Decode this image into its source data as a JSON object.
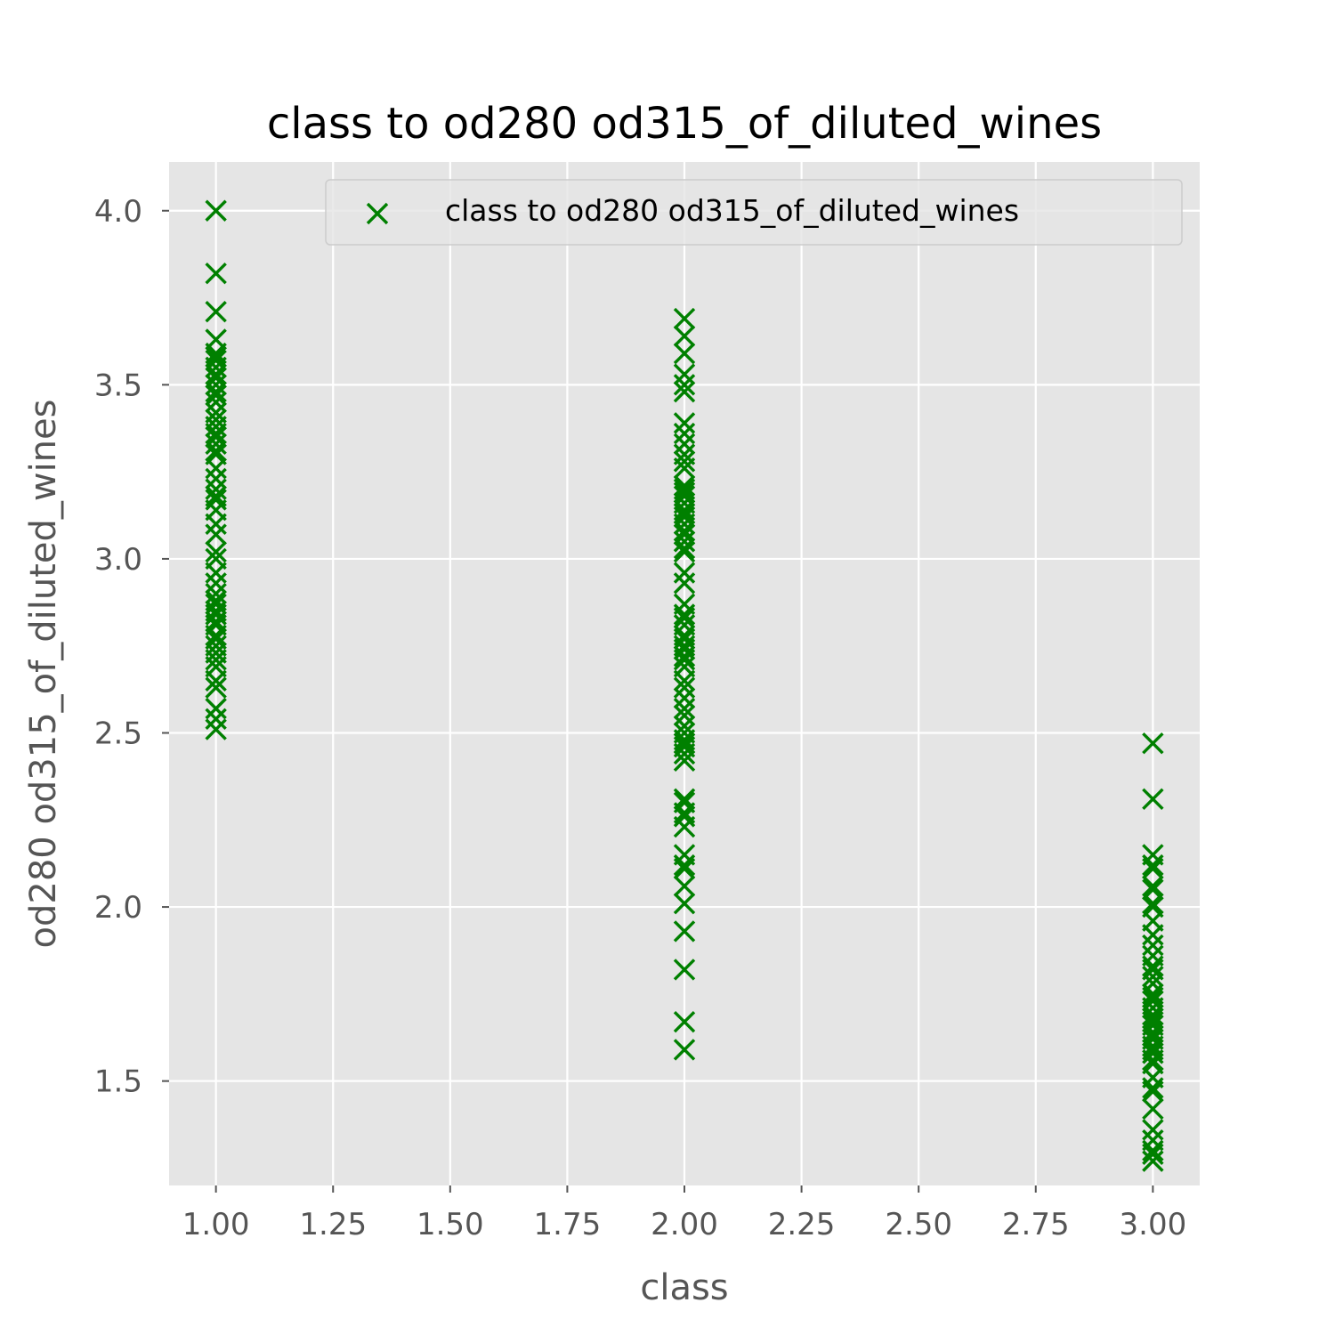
{
  "chart_data": {
    "type": "scatter",
    "title": "class to od280 od315_of_diluted_wines",
    "xlabel": "class",
    "ylabel": "od280 od315_of_diluted_wines",
    "xlim": [
      0.9,
      3.1
    ],
    "ylim": [
      1.2,
      4.14
    ],
    "x_ticks": [
      1.0,
      1.25,
      1.5,
      1.75,
      2.0,
      2.25,
      2.5,
      2.75,
      3.0
    ],
    "x_tick_labels": [
      "1.00",
      "1.25",
      "1.50",
      "1.75",
      "2.00",
      "2.25",
      "2.50",
      "2.75",
      "3.00"
    ],
    "y_ticks": [
      1.5,
      2.0,
      2.5,
      3.0,
      3.5,
      4.0
    ],
    "y_tick_labels": [
      "1.5",
      "2.0",
      "2.5",
      "3.0",
      "3.5",
      "4.0"
    ],
    "grid": true,
    "legend_position": "top-right",
    "marker": "x",
    "colors": {
      "marker": "#008000",
      "plot_bg": "#e5e5e5",
      "grid": "#ffffff",
      "text": "#555555"
    },
    "series": [
      {
        "name": "class to od280 od315_of_diluted_wines",
        "points": [
          [
            1,
            4.0
          ],
          [
            1,
            3.82
          ],
          [
            1,
            3.71
          ],
          [
            1,
            3.63
          ],
          [
            1,
            3.59
          ],
          [
            1,
            3.58
          ],
          [
            1,
            3.57
          ],
          [
            1,
            3.55
          ],
          [
            1,
            3.53
          ],
          [
            1,
            3.52
          ],
          [
            1,
            3.5
          ],
          [
            1,
            3.48
          ],
          [
            1,
            3.47
          ],
          [
            1,
            3.45
          ],
          [
            1,
            3.42
          ],
          [
            1,
            3.4
          ],
          [
            1,
            3.38
          ],
          [
            1,
            3.36
          ],
          [
            1,
            3.35
          ],
          [
            1,
            3.33
          ],
          [
            1,
            3.31
          ],
          [
            1,
            3.3
          ],
          [
            1,
            3.26
          ],
          [
            1,
            3.23
          ],
          [
            1,
            3.2
          ],
          [
            1,
            3.18
          ],
          [
            1,
            3.17
          ],
          [
            1,
            3.14
          ],
          [
            1,
            3.1
          ],
          [
            1,
            3.07
          ],
          [
            1,
            3.02
          ],
          [
            1,
            3.0
          ],
          [
            1,
            2.96
          ],
          [
            1,
            2.93
          ],
          [
            1,
            2.9
          ],
          [
            1,
            2.88
          ],
          [
            1,
            2.87
          ],
          [
            1,
            2.85
          ],
          [
            1,
            2.84
          ],
          [
            1,
            2.82
          ],
          [
            1,
            2.81
          ],
          [
            1,
            2.78
          ],
          [
            1,
            2.77
          ],
          [
            1,
            2.75
          ],
          [
            1,
            2.73
          ],
          [
            1,
            2.71
          ],
          [
            1,
            2.69
          ],
          [
            1,
            2.65
          ],
          [
            1,
            2.63
          ],
          [
            1,
            2.57
          ],
          [
            1,
            2.54
          ],
          [
            1,
            2.51
          ],
          [
            2,
            3.69
          ],
          [
            2,
            3.64
          ],
          [
            2,
            3.59
          ],
          [
            2,
            3.53
          ],
          [
            2,
            3.5
          ],
          [
            2,
            3.48
          ],
          [
            2,
            3.39
          ],
          [
            2,
            3.36
          ],
          [
            2,
            3.33
          ],
          [
            2,
            3.3
          ],
          [
            2,
            3.28
          ],
          [
            2,
            3.26
          ],
          [
            2,
            3.21
          ],
          [
            2,
            3.2
          ],
          [
            2,
            3.19
          ],
          [
            2,
            3.18
          ],
          [
            2,
            3.16
          ],
          [
            2,
            3.14
          ],
          [
            2,
            3.13
          ],
          [
            2,
            3.12
          ],
          [
            2,
            3.1
          ],
          [
            2,
            3.08
          ],
          [
            2,
            3.07
          ],
          [
            2,
            3.05
          ],
          [
            2,
            3.03
          ],
          [
            2,
            3.02
          ],
          [
            2,
            2.96
          ],
          [
            2,
            2.93
          ],
          [
            2,
            2.87
          ],
          [
            2,
            2.84
          ],
          [
            2,
            2.83
          ],
          [
            2,
            2.81
          ],
          [
            2,
            2.78
          ],
          [
            2,
            2.77
          ],
          [
            2,
            2.75
          ],
          [
            2,
            2.74
          ],
          [
            2,
            2.72
          ],
          [
            2,
            2.71
          ],
          [
            2,
            2.69
          ],
          [
            2,
            2.65
          ],
          [
            2,
            2.63
          ],
          [
            2,
            2.6
          ],
          [
            2,
            2.57
          ],
          [
            2,
            2.55
          ],
          [
            2,
            2.52
          ],
          [
            2,
            2.5
          ],
          [
            2,
            2.48
          ],
          [
            2,
            2.47
          ],
          [
            2,
            2.46
          ],
          [
            2,
            2.44
          ],
          [
            2,
            2.42
          ],
          [
            2,
            2.31
          ],
          [
            2,
            2.3
          ],
          [
            2,
            2.27
          ],
          [
            2,
            2.26
          ],
          [
            2,
            2.23
          ],
          [
            2,
            2.15
          ],
          [
            2,
            2.12
          ],
          [
            2,
            2.11
          ],
          [
            2,
            2.06
          ],
          [
            2,
            2.01
          ],
          [
            2,
            1.93
          ],
          [
            2,
            1.82
          ],
          [
            2,
            1.67
          ],
          [
            2,
            1.59
          ],
          [
            3,
            2.47
          ],
          [
            3,
            2.31
          ],
          [
            3,
            2.15
          ],
          [
            3,
            2.12
          ],
          [
            3,
            2.11
          ],
          [
            3,
            2.06
          ],
          [
            3,
            2.05
          ],
          [
            3,
            2.01
          ],
          [
            3,
            2.0
          ],
          [
            3,
            1.96
          ],
          [
            3,
            1.92
          ],
          [
            3,
            1.89
          ],
          [
            3,
            1.86
          ],
          [
            3,
            1.83
          ],
          [
            3,
            1.82
          ],
          [
            3,
            1.8
          ],
          [
            3,
            1.78
          ],
          [
            3,
            1.75
          ],
          [
            3,
            1.74
          ],
          [
            3,
            1.73
          ],
          [
            3,
            1.71
          ],
          [
            3,
            1.69
          ],
          [
            3,
            1.68
          ],
          [
            3,
            1.67
          ],
          [
            3,
            1.66
          ],
          [
            3,
            1.64
          ],
          [
            3,
            1.63
          ],
          [
            3,
            1.62
          ],
          [
            3,
            1.6
          ],
          [
            3,
            1.59
          ],
          [
            3,
            1.58
          ],
          [
            3,
            1.56
          ],
          [
            3,
            1.55
          ],
          [
            3,
            1.51
          ],
          [
            3,
            1.48
          ],
          [
            3,
            1.47
          ],
          [
            3,
            1.42
          ],
          [
            3,
            1.36
          ],
          [
            3,
            1.33
          ],
          [
            3,
            1.3
          ],
          [
            3,
            1.29
          ],
          [
            3,
            1.27
          ]
        ]
      }
    ]
  }
}
